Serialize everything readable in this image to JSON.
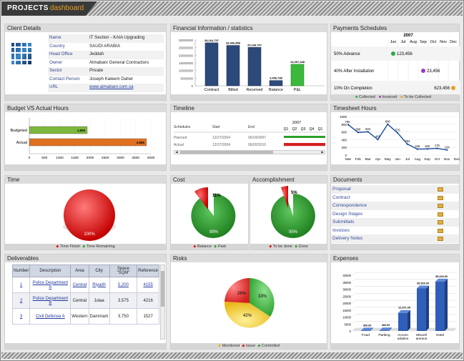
{
  "header": {
    "title_main": "PROJECTS",
    "title_sub": "dashboard"
  },
  "client": {
    "title": "Client Details",
    "rows": [
      {
        "k": "Name",
        "v": "IT Section - KAIA Upgrading"
      },
      {
        "k": "Country",
        "v": "SAUDI ARABIA"
      },
      {
        "k": "Head Office",
        "v": "Jeddah"
      },
      {
        "k": "Owner",
        "v": "Almabani General Contractors"
      },
      {
        "k": "Sector",
        "v": "Private"
      },
      {
        "k": "Contact Person",
        "v": "Joseph Kaleem Daher"
      },
      {
        "k": "URL",
        "v": "www.almabani.com.sa"
      }
    ]
  },
  "financial": {
    "title": "Financial Information / statistics",
    "categories": [
      "Contract",
      "Billed",
      "Received",
      "Balance",
      "P&L"
    ],
    "values": [
      28164737,
      26466858,
      25168707,
      3456789,
      14097448
    ],
    "labels": [
      "28,164,737",
      "26,466,858",
      "25,168,707",
      "3,456,789",
      "14,097,448"
    ],
    "yticks": [
      "30000000",
      "25000000",
      "20000000",
      "15000000",
      "10000000",
      "5000000",
      "0"
    ]
  },
  "payments": {
    "title": "Payments Schedules",
    "year": "2007",
    "months": [
      "Jun",
      "Jul",
      "Aug",
      "Sep",
      "Oct",
      "Nov",
      "Dec"
    ],
    "rows": [
      {
        "label": "50% Advance",
        "value": "123,456",
        "color": "#2aa84a",
        "month": 0
      },
      {
        "label": "40% After Installation",
        "value": "23,456",
        "color": "#9a3ac8",
        "month": 3
      },
      {
        "label": "10% On Completion",
        "value": "623,456",
        "color": "#e8a020",
        "month": 6
      }
    ],
    "legend": [
      "Collected",
      "Invoiced",
      "To be Collected"
    ]
  },
  "budget": {
    "title": "Budget VS Actual Hours",
    "rows": [
      {
        "label": "Budgeted",
        "value": 1905,
        "text": "1,905"
      },
      {
        "label": "Actual",
        "value": 3856,
        "text": "3,856"
      }
    ],
    "xticks": [
      "0",
      "500",
      "1000",
      "1500",
      "2000",
      "2500",
      "3000",
      "3500",
      "4000"
    ]
  },
  "timeline": {
    "title": "Timeline",
    "headers": [
      "Schedules",
      "Start",
      "End"
    ],
    "year": "2007",
    "quarters": [
      "Q1",
      "Q2",
      "Q3",
      "Q4",
      "Q1"
    ],
    "rows": [
      {
        "name": "Planned",
        "start": "12/27/2004",
        "end": "05/24/2007"
      },
      {
        "name": "Actual",
        "start": "12/27/2004",
        "end": "06/02/2010"
      }
    ]
  },
  "timesheet": {
    "title": "Timesheet Hours",
    "chart_data": {
      "type": "line",
      "categories": [
        "Mar",
        "Feb",
        "Mar",
        "Apr",
        "May",
        "Jun",
        "Jul",
        "Aug",
        "Sep",
        "Oct",
        "Nov",
        "Dec"
      ],
      "values": [
        790,
        588,
        604,
        405,
        800,
        575,
        284,
        156,
        160,
        175,
        134,
        null
      ],
      "labels": [
        "790",
        "588",
        "604",
        "405",
        "800",
        "575",
        "284",
        "156",
        "160",
        "175",
        "134"
      ],
      "ylim": [
        0,
        1000
      ],
      "yticks": [
        "1000",
        "800",
        "600",
        "400",
        "200",
        "0"
      ]
    }
  },
  "time": {
    "title": "Time",
    "label": "100%",
    "legend": [
      "Time Finish",
      "Time Remaining"
    ]
  },
  "cost": {
    "title": "Cost",
    "big": "89%",
    "small": "11%",
    "legend": [
      "Balance",
      "Paid"
    ]
  },
  "accomplishment": {
    "title": "Accomplishment",
    "big": "95%",
    "small": "5%",
    "legend": [
      "To be done",
      "Done"
    ]
  },
  "documents": {
    "title": "Documents",
    "items": [
      "Proposal",
      "Contract",
      "Correspondence",
      "Design Stages",
      "Submittals",
      "Invoices",
      "Delivery Notes"
    ]
  },
  "deliverables": {
    "title": "Deliverables",
    "headers": [
      "Number",
      "Description",
      "Area",
      "City",
      "Space \"SQM\"",
      "Reference"
    ],
    "rows": [
      {
        "num": "1",
        "desc": "Police Department A",
        "area": "Central",
        "city": "Riyadh",
        "space": "5,200",
        "ref": "4155"
      },
      {
        "num": "2",
        "desc": "Police Department B",
        "area": "Central",
        "city": "Julaa",
        "space": "3,575",
        "ref": "4216"
      },
      {
        "num": "3",
        "desc": "Civil Defense A",
        "area": "Western",
        "city": "Dammam",
        "space": "3,750",
        "ref": "1527"
      }
    ]
  },
  "risks": {
    "title": "Risks",
    "labels": [
      "26%",
      "33%",
      "42%"
    ],
    "legend": [
      "Monitored",
      "Issue",
      "Controlled"
    ]
  },
  "expenses": {
    "title": "Expenses",
    "chart_data": {
      "type": "bar",
      "categories": [
        "Food",
        "Parking",
        "Accom odation",
        "Miscell aneous",
        "Hotel"
      ],
      "values": [
        300,
        400,
        12971,
        30518,
        35418
      ],
      "labels": [
        "300.00",
        "400.00",
        "12,971.00",
        "30,518.00",
        "35,418.00"
      ],
      "ylim": [
        0,
        40000
      ],
      "yticks": [
        "40000",
        "35000",
        "30000",
        "25000",
        "20000",
        "15000",
        "10000",
        "5000",
        "0"
      ]
    }
  }
}
